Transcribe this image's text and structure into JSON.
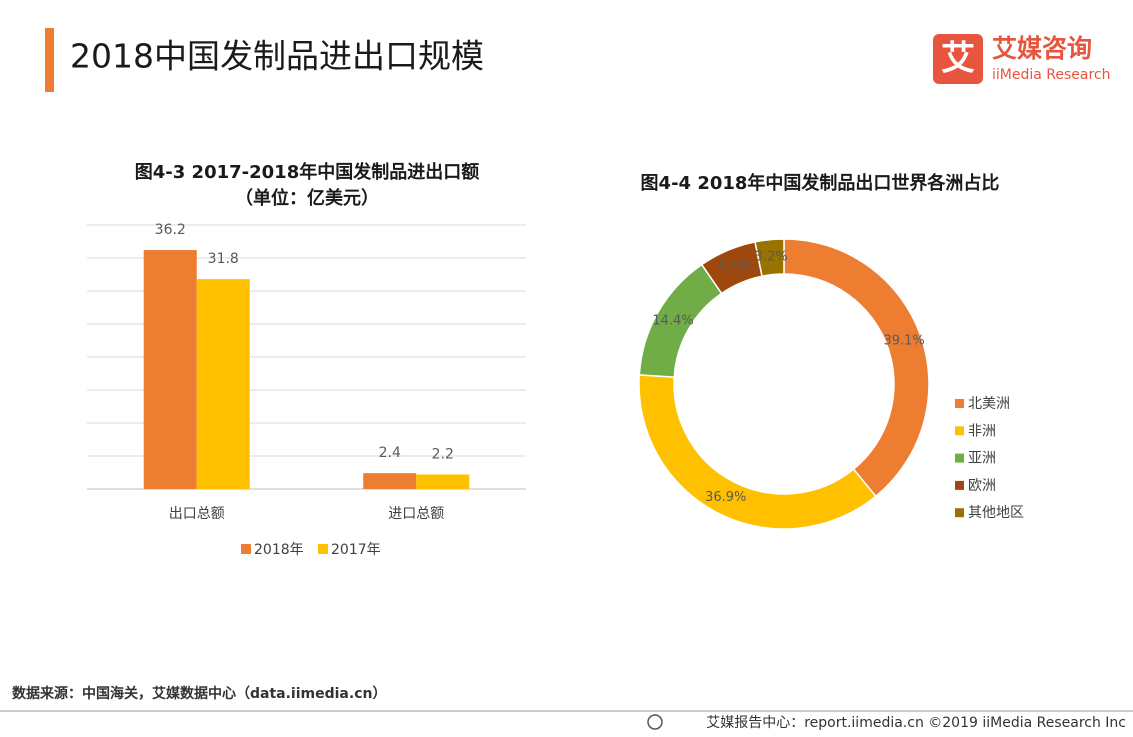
{
  "header": {
    "title": "2018中国发制品进出口规模"
  },
  "logo": {
    "icon": "艾",
    "name": "艾媒咨询",
    "sub": "iiMedia Research"
  },
  "chart_data": [
    {
      "type": "bar",
      "title": "图4-3 2017-2018年中国发制品进出口额",
      "subtitle": "（单位：亿美元）",
      "categories": [
        "出口总额",
        "进口总额"
      ],
      "series": [
        {
          "name": "2018年",
          "color": "#ed7d31",
          "values": [
            36.2,
            2.4
          ]
        },
        {
          "name": "2017年",
          "color": "#ffc000",
          "values": [
            31.8,
            2.2
          ]
        }
      ],
      "ylim": [
        0,
        40
      ],
      "yticks": [
        0,
        5,
        10,
        15,
        20,
        25,
        30,
        35,
        40
      ],
      "grid": true,
      "legend": "bottom"
    },
    {
      "type": "pie",
      "title": "图4-4 2018年中国发制品出口世界各洲占比",
      "categories": [
        "北美洲",
        "非洲",
        "亚洲",
        "欧洲",
        "其他地区"
      ],
      "values": [
        39.1,
        36.9,
        14.4,
        6.4,
        3.2
      ],
      "value_labels": [
        "39.1%",
        "36.9%",
        "14.4%",
        "6.4%",
        "3.2%"
      ],
      "colors": [
        "#ed7d31",
        "#ffc000",
        "#70ad47",
        "#9e480e",
        "#997300"
      ],
      "donut": true,
      "legend": "right"
    }
  ],
  "source": "数据来源：中国海关，艾媒数据中心（data.iimedia.cn）",
  "footer": "艾媒报告中心：report.iimedia.cn  ©2019  iiMedia Research  Inc"
}
